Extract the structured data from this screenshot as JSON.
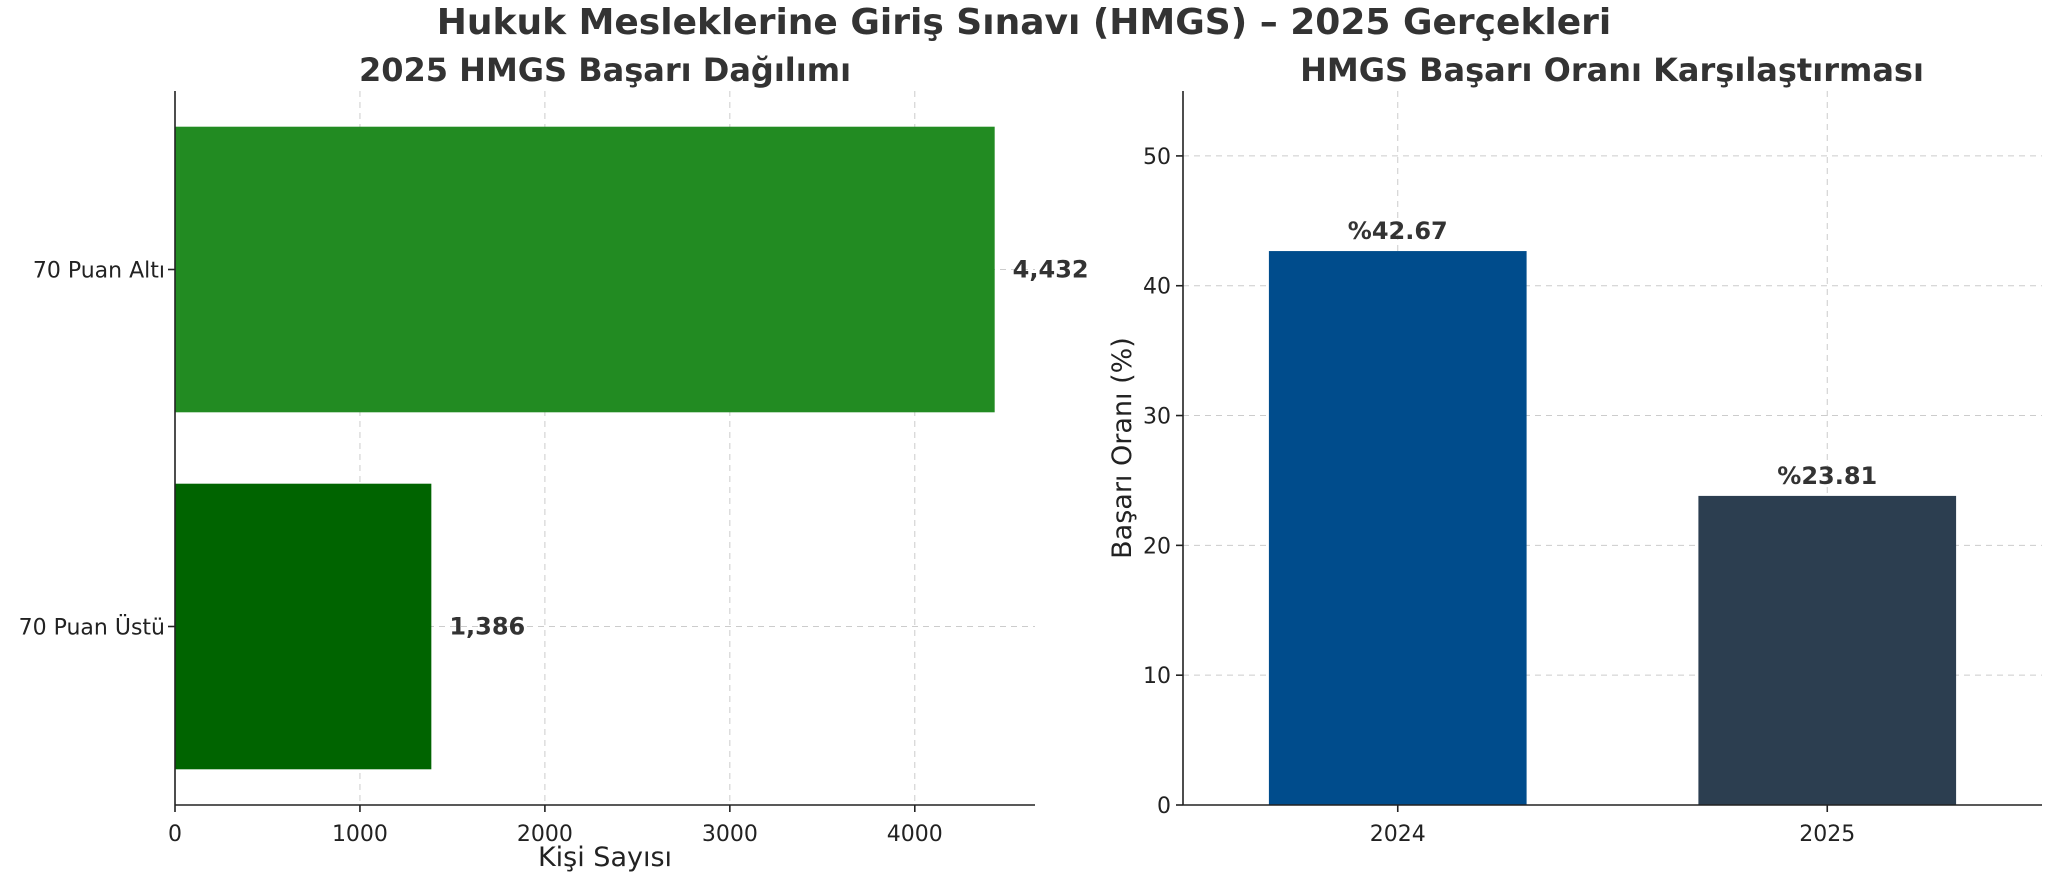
{
  "page": {
    "title": "Hukuk Mesleklerine Giriş Sınavı (HMGS) – 2025 Gerçekleri"
  },
  "chart_data": [
    {
      "type": "bar",
      "orientation": "horizontal",
      "title": "2025 HMGS Başarı Dağılımı",
      "xlabel": "Kişi Sayısı",
      "ylabel": "",
      "xlim": [
        0,
        4650
      ],
      "xticks": [
        0,
        1000,
        2000,
        3000,
        4000
      ],
      "categories": [
        "70 Puan Altı",
        "70 Puan Üstü"
      ],
      "values": [
        4432,
        1386
      ],
      "value_labels": [
        "4,432",
        "1,386"
      ],
      "colors": [
        "#228b22",
        "#006400"
      ],
      "grid": true,
      "legend": "none"
    },
    {
      "type": "bar",
      "orientation": "vertical",
      "title": "HMGS Başarı Oranı Karşılaştırması",
      "xlabel": "",
      "ylabel": "Başarı Oranı (%)",
      "ylim": [
        0,
        55
      ],
      "yticks": [
        0,
        10,
        20,
        30,
        40,
        50
      ],
      "categories": [
        "2024",
        "2025"
      ],
      "values": [
        42.67,
        23.81
      ],
      "value_labels": [
        "%42.67",
        "%23.81"
      ],
      "colors": [
        "#004c8c",
        "#2c3e50"
      ],
      "grid": true,
      "legend": "none"
    }
  ]
}
